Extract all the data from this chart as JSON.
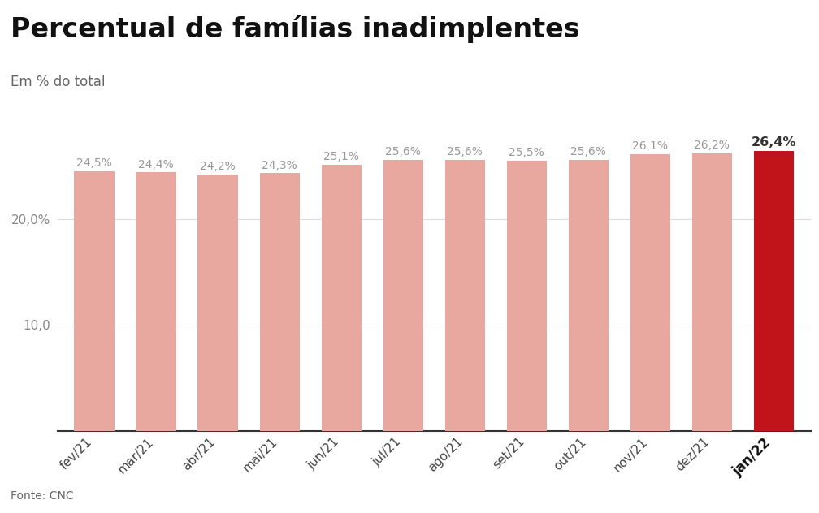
{
  "title": "Percentual de famílias inadimplentes",
  "subtitle": "Em % do total",
  "source": "Fonte: CNC",
  "categories": [
    "fev/21",
    "mar/21",
    "abr/21",
    "mai/21",
    "jun/21",
    "jul/21",
    "ago/21",
    "set/21",
    "out/21",
    "nov/21",
    "dez/21",
    "jan/22"
  ],
  "values": [
    24.5,
    24.4,
    24.2,
    24.3,
    25.1,
    25.6,
    25.6,
    25.5,
    25.6,
    26.1,
    26.2,
    26.4
  ],
  "labels": [
    "24,5%",
    "24,4%",
    "24,2%",
    "24,3%",
    "25,1%",
    "25,6%",
    "25,6%",
    "25,5%",
    "25,6%",
    "26,1%",
    "26,2%",
    "26,4%"
  ],
  "bar_colors": [
    "#e8a8a0",
    "#e8a8a0",
    "#e8a8a0",
    "#e8a8a0",
    "#e8a8a0",
    "#e8a8a0",
    "#e8a8a0",
    "#e8a8a0",
    "#e8a8a0",
    "#e8a8a0",
    "#e8a8a0",
    "#c0141a"
  ],
  "highlight_index": 11,
  "ylim": [
    0,
    30
  ],
  "background_color": "#ffffff",
  "title_fontsize": 24,
  "subtitle_fontsize": 12,
  "label_fontsize": 10,
  "xtick_fontsize": 11,
  "ytick_fontsize": 11,
  "source_fontsize": 10,
  "label_color_normal": "#999999",
  "label_color_highlight": "#333333",
  "bar_color_normal": "#e8a8a0",
  "bar_color_highlight": "#c0141a",
  "grid_color": "#dddddd",
  "spine_color": "#333333",
  "ytick_color": "#888888",
  "xtick_color": "#444444"
}
